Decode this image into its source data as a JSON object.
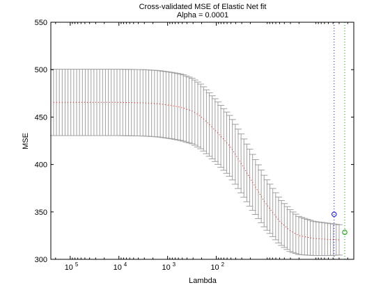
{
  "chart_data": {
    "type": "line",
    "title": "Cross-validated MSE of Elastic Net fit",
    "subtitle": "Alpha = 0.0001",
    "xlabel": "Lambda",
    "ylabel": "MSE",
    "x_scale": "log",
    "x_reversed": true,
    "xlim": [
      0.15,
      250000.0
    ],
    "ylim": [
      300,
      550
    ],
    "y_ticks": [
      300,
      350,
      400,
      450,
      500,
      550
    ],
    "x_ticks": [
      {
        "value": 100000,
        "base": "10",
        "exp": "5"
      },
      {
        "value": 10000,
        "base": "10",
        "exp": "4"
      },
      {
        "value": 1000,
        "base": "10",
        "exp": "3"
      },
      {
        "value": 100,
        "base": "10",
        "exp": "2"
      }
    ],
    "grid": false,
    "series": [
      {
        "style": "dotted",
        "color": "#ff0000",
        "error_bar_color": "#a0a0a0",
        "points": [
          {
            "x": 220000.0,
            "y": 465.5,
            "err": 35.0
          },
          {
            "x": 100000.0,
            "y": 465.5,
            "err": 35.0
          },
          {
            "x": 30000.0,
            "y": 465.5,
            "err": 35.0
          },
          {
            "x": 10000.0,
            "y": 465.5,
            "err": 35.0
          },
          {
            "x": 3000.0,
            "y": 465.0,
            "err": 35.0
          },
          {
            "x": 1500.0,
            "y": 464.0,
            "err": 35.0
          },
          {
            "x": 800,
            "y": 462.0,
            "err": 35.0
          },
          {
            "x": 500,
            "y": 460.0,
            "err": 35.0
          },
          {
            "x": 300,
            "y": 456.0,
            "err": 34.5
          },
          {
            "x": 200,
            "y": 450.0,
            "err": 34.0
          },
          {
            "x": 100,
            "y": 435.0,
            "err": 33.0
          },
          {
            "x": 50,
            "y": 418.0,
            "err": 32.0
          },
          {
            "x": 30,
            "y": 400.0,
            "err": 31.0
          },
          {
            "x": 20,
            "y": 385.0,
            "err": 30.0
          },
          {
            "x": 10,
            "y": 360.0,
            "err": 27.0
          },
          {
            "x": 5,
            "y": 340.0,
            "err": 24.0
          },
          {
            "x": 3,
            "y": 330.0,
            "err": 22.0
          },
          {
            "x": 2,
            "y": 325.0,
            "err": 20.0
          },
          {
            "x": 1,
            "y": 322.0,
            "err": 18.0
          },
          {
            "x": 0.5,
            "y": 321.0,
            "err": 17.0
          },
          {
            "x": 0.3,
            "y": 320.5,
            "err": 16.0
          }
        ]
      }
    ],
    "markers": [
      {
        "x": 0.38,
        "y": 347.5,
        "shape": "circle",
        "color": "#0000ff",
        "line_style": "dotted"
      },
      {
        "x": 0.23,
        "y": 328.5,
        "shape": "circle",
        "color": "#00a000",
        "line_style": "dotted"
      }
    ]
  }
}
